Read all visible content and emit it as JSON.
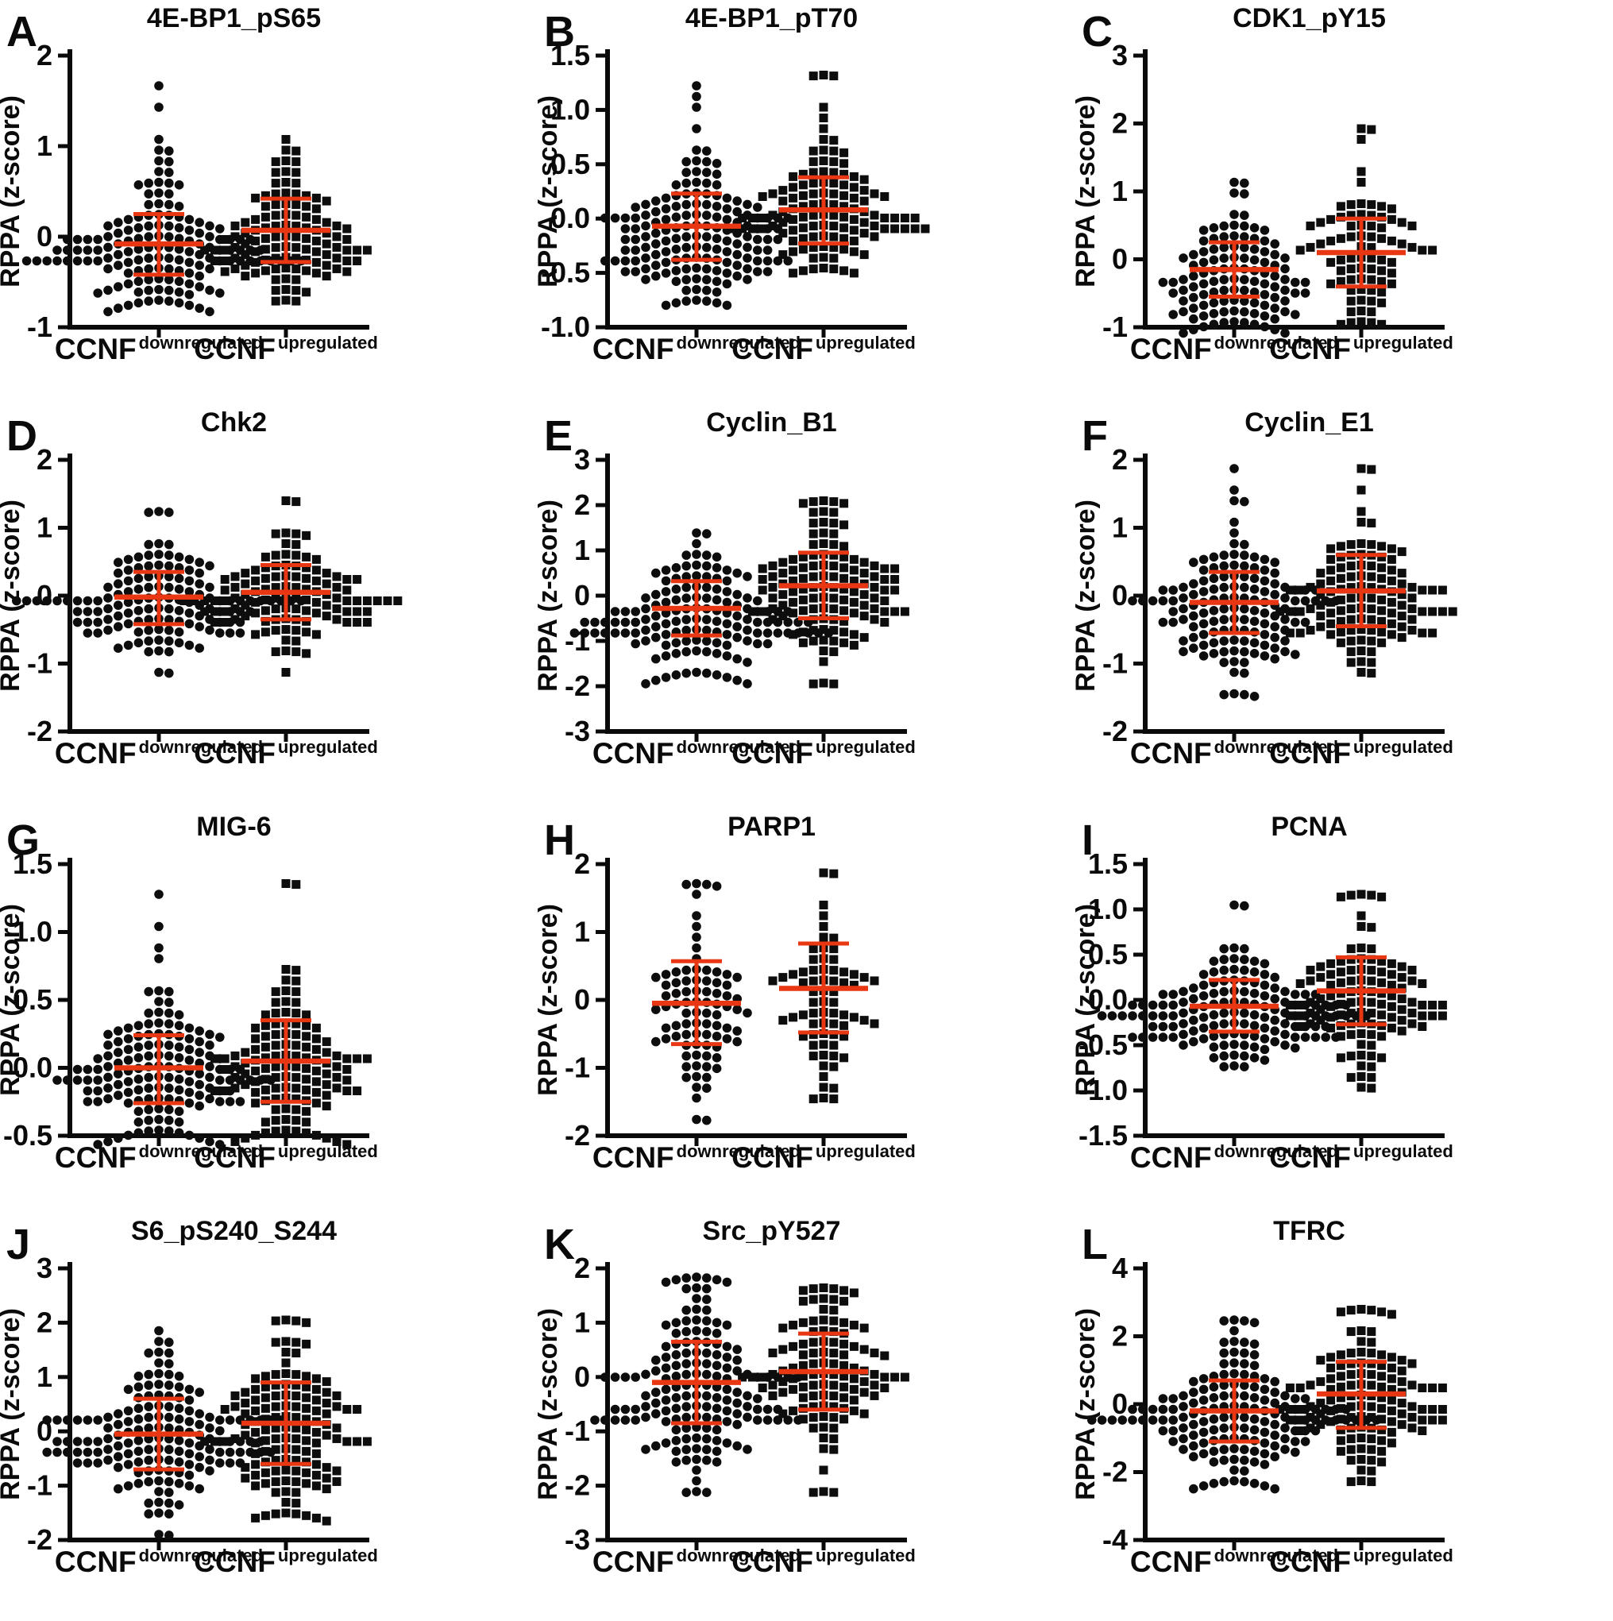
{
  "figure": {
    "ylabel": "RPPA (z-score)",
    "group_base_label": "CCNF",
    "group_sup_labels": [
      "downregulated",
      "upregulated"
    ]
  },
  "style": {
    "accent_red": "#e83712",
    "marker_color": "#0d0d0d",
    "axis_color": "#0a0a0a",
    "background": "#ffffff"
  },
  "chart_data": [
    {
      "panel": "A",
      "type": "scatter",
      "title": "4E-BP1_pS65",
      "ylabel": "RPPA (z-score)",
      "ylim": [
        -1,
        2
      ],
      "yticks": [
        "2",
        "1",
        "0",
        "-1"
      ],
      "categories": [
        {
          "base": "CCNF",
          "sup": "downregulated",
          "marker": "circle"
        },
        {
          "base": "CCNF",
          "sup": "upregulated",
          "marker": "square"
        }
      ],
      "groups": [
        {
          "n": 150,
          "mean": -0.08,
          "whisker_top": 0.25,
          "whisker_bottom": -0.42,
          "min": -0.75,
          "max": 1.7
        },
        {
          "n": 115,
          "mean": 0.07,
          "whisker_top": 0.42,
          "whisker_bottom": -0.28,
          "min": -0.65,
          "max": 1.1
        }
      ]
    },
    {
      "panel": "B",
      "type": "scatter",
      "title": "4E-BP1_pT70",
      "ylabel": "RPPA (z-score)",
      "ylim": [
        -1,
        1.5
      ],
      "yticks": [
        "1.5",
        "1.0",
        "0.5",
        "0.0",
        "-0.5",
        "-1.0"
      ],
      "categories": [
        {
          "base": "CCNF",
          "sup": "downregulated",
          "marker": "circle"
        },
        {
          "base": "CCNF",
          "sup": "upregulated",
          "marker": "square"
        }
      ],
      "groups": [
        {
          "n": 160,
          "mean": -0.07,
          "whisker_top": 0.23,
          "whisker_bottom": -0.38,
          "min": -0.75,
          "max": 1.18
        },
        {
          "n": 120,
          "mean": 0.08,
          "whisker_top": 0.38,
          "whisker_bottom": -0.23,
          "min": -0.5,
          "max": 1.33
        }
      ]
    },
    {
      "panel": "C",
      "type": "scatter",
      "title": "CDK1_pY15",
      "ylabel": "RPPA (z-score)",
      "ylim": [
        -1,
        3
      ],
      "yticks": [
        "3",
        "2",
        "1",
        "0",
        "-1"
      ],
      "categories": [
        {
          "base": "CCNF",
          "sup": "downregulated",
          "marker": "circle"
        },
        {
          "base": "CCNF",
          "sup": "upregulated",
          "marker": "square"
        }
      ],
      "groups": [
        {
          "n": 115,
          "mean": -0.15,
          "whisker_top": 0.25,
          "whisker_bottom": -0.55,
          "min": -0.9,
          "max": 1.1
        },
        {
          "n": 78,
          "mean": 0.1,
          "whisker_top": 0.6,
          "whisker_bottom": -0.4,
          "min": -0.95,
          "max": 2.0
        }
      ]
    },
    {
      "panel": "D",
      "type": "scatter",
      "title": "Chk2",
      "ylabel": "RPPA (z-score)",
      "ylim": [
        -2,
        2
      ],
      "yticks": [
        "2",
        "1",
        "0",
        "-1",
        "-2"
      ],
      "categories": [
        {
          "base": "CCNF",
          "sup": "downregulated",
          "marker": "circle"
        },
        {
          "base": "CCNF",
          "sup": "upregulated",
          "marker": "square"
        }
      ],
      "groups": [
        {
          "n": 135,
          "mean": -0.02,
          "whisker_top": 0.35,
          "whisker_bottom": -0.42,
          "min": -1.05,
          "max": 1.3
        },
        {
          "n": 115,
          "mean": 0.05,
          "whisker_top": 0.45,
          "whisker_bottom": -0.35,
          "min": -1.2,
          "max": 1.35
        }
      ]
    },
    {
      "panel": "E",
      "type": "scatter",
      "title": "Cyclin_B1",
      "ylabel": "RPPA (z-score)",
      "ylim": [
        -3,
        3
      ],
      "yticks": [
        "3",
        "2",
        "1",
        "0",
        "-1",
        "-2",
        "-3"
      ],
      "categories": [
        {
          "base": "CCNF",
          "sup": "downregulated",
          "marker": "circle"
        },
        {
          "base": "CCNF",
          "sup": "upregulated",
          "marker": "square"
        }
      ],
      "groups": [
        {
          "n": 145,
          "mean": -0.28,
          "whisker_top": 0.32,
          "whisker_bottom": -0.88,
          "min": -1.6,
          "max": 1.4
        },
        {
          "n": 125,
          "mean": 0.22,
          "whisker_top": 0.95,
          "whisker_bottom": -0.5,
          "min": -2.0,
          "max": 2.1
        }
      ]
    },
    {
      "panel": "F",
      "type": "scatter",
      "title": "Cyclin_E1",
      "ylabel": "RPPA (z-score)",
      "ylim": [
        -2,
        2
      ],
      "yticks": [
        "2",
        "1",
        "0",
        "-1",
        "-2"
      ],
      "categories": [
        {
          "base": "CCNF",
          "sup": "downregulated",
          "marker": "circle"
        },
        {
          "base": "CCNF",
          "sup": "upregulated",
          "marker": "square"
        }
      ],
      "groups": [
        {
          "n": 140,
          "mean": -0.1,
          "whisker_top": 0.35,
          "whisker_bottom": -0.55,
          "min": -1.4,
          "max": 1.8
        },
        {
          "n": 120,
          "mean": 0.07,
          "whisker_top": 0.6,
          "whisker_bottom": -0.45,
          "min": -1.05,
          "max": 1.95
        }
      ]
    },
    {
      "panel": "G",
      "type": "scatter",
      "title": "MIG-6",
      "ylabel": "RPPA (z-score)",
      "ylim": [
        -0.5,
        1.5
      ],
      "yticks": [
        "1.5",
        "1.0",
        "0.5",
        "0.0",
        "-0.5"
      ],
      "categories": [
        {
          "base": "CCNF",
          "sup": "downregulated",
          "marker": "circle"
        },
        {
          "base": "CCNF",
          "sup": "upregulated",
          "marker": "square"
        }
      ],
      "groups": [
        {
          "n": 150,
          "mean": 0.0,
          "whisker_top": 0.24,
          "whisker_bottom": -0.26,
          "min": -0.45,
          "max": 1.3
        },
        {
          "n": 125,
          "mean": 0.05,
          "whisker_top": 0.35,
          "whisker_bottom": -0.25,
          "min": -0.42,
          "max": 1.35
        }
      ]
    },
    {
      "panel": "H",
      "type": "scatter",
      "title": "PARP1",
      "ylabel": "RPPA (z-score)",
      "ylim": [
        -2,
        2
      ],
      "yticks": [
        "2",
        "1",
        "0",
        "-1",
        "-2"
      ],
      "categories": [
        {
          "base": "CCNF",
          "sup": "downregulated",
          "marker": "circle"
        },
        {
          "base": "CCNF",
          "sup": "upregulated",
          "marker": "square"
        }
      ],
      "groups": [
        {
          "n": 85,
          "mean": -0.05,
          "whisker_top": 0.57,
          "whisker_bottom": -0.65,
          "min": -1.78,
          "max": 1.65
        },
        {
          "n": 70,
          "mean": 0.17,
          "whisker_top": 0.83,
          "whisker_bottom": -0.48,
          "min": -1.45,
          "max": 1.8
        }
      ]
    },
    {
      "panel": "I",
      "type": "scatter",
      "title": "PCNA",
      "ylabel": "RPPA (z-score)",
      "ylim": [
        -1.5,
        1.5
      ],
      "yticks": [
        "1.5",
        "1.0",
        "0.5",
        "0.0",
        "-0.5",
        "-1.0",
        "-1.5"
      ],
      "categories": [
        {
          "base": "CCNF",
          "sup": "downregulated",
          "marker": "circle"
        },
        {
          "base": "CCNF",
          "sup": "upregulated",
          "marker": "square"
        }
      ],
      "groups": [
        {
          "n": 150,
          "mean": -0.07,
          "whisker_top": 0.22,
          "whisker_bottom": -0.35,
          "min": -0.72,
          "max": 1.1
        },
        {
          "n": 115,
          "mean": 0.1,
          "whisker_top": 0.47,
          "whisker_bottom": -0.27,
          "min": -1.0,
          "max": 1.15
        }
      ]
    },
    {
      "panel": "J",
      "type": "scatter",
      "title": "S6_pS240_S244",
      "ylabel": "RPPA (z-score)",
      "ylim": [
        -2,
        3
      ],
      "yticks": [
        "3",
        "2",
        "1",
        "0",
        "-1",
        "-2"
      ],
      "categories": [
        {
          "base": "CCNF",
          "sup": "downregulated",
          "marker": "circle"
        },
        {
          "base": "CCNF",
          "sup": "upregulated",
          "marker": "square"
        }
      ],
      "groups": [
        {
          "n": 160,
          "mean": -0.05,
          "whisker_top": 0.6,
          "whisker_bottom": -0.7,
          "min": -1.85,
          "max": 1.95
        },
        {
          "n": 135,
          "mean": 0.15,
          "whisker_top": 0.9,
          "whisker_bottom": -0.6,
          "min": -1.6,
          "max": 2.0
        }
      ]
    },
    {
      "panel": "K",
      "type": "scatter",
      "title": "Src_pY527",
      "ylabel": "RPPA (z-score)",
      "ylim": [
        -3,
        2
      ],
      "yticks": [
        "2",
        "1",
        "0",
        "-1",
        "-2",
        "-3"
      ],
      "categories": [
        {
          "base": "CCNF",
          "sup": "downregulated",
          "marker": "circle"
        },
        {
          "base": "CCNF",
          "sup": "upregulated",
          "marker": "square"
        }
      ],
      "groups": [
        {
          "n": 160,
          "mean": -0.1,
          "whisker_top": 0.65,
          "whisker_bottom": -0.85,
          "min": -2.15,
          "max": 1.8
        },
        {
          "n": 115,
          "mean": 0.1,
          "whisker_top": 0.8,
          "whisker_bottom": -0.6,
          "min": -2.1,
          "max": 1.6
        }
      ]
    },
    {
      "panel": "L",
      "type": "scatter",
      "title": "TFRC",
      "ylabel": "RPPA (z-score)",
      "ylim": [
        -4,
        4
      ],
      "yticks": [
        "4",
        "2",
        "0",
        "-2",
        "-4"
      ],
      "categories": [
        {
          "base": "CCNF",
          "sup": "downregulated",
          "marker": "circle"
        },
        {
          "base": "CCNF",
          "sup": "upregulated",
          "marker": "square"
        }
      ],
      "groups": [
        {
          "n": 160,
          "mean": -0.2,
          "whisker_top": 0.7,
          "whisker_bottom": -1.1,
          "min": -2.3,
          "max": 2.6
        },
        {
          "n": 125,
          "mean": 0.3,
          "whisker_top": 1.25,
          "whisker_bottom": -0.7,
          "min": -2.3,
          "max": 2.7
        }
      ]
    }
  ]
}
